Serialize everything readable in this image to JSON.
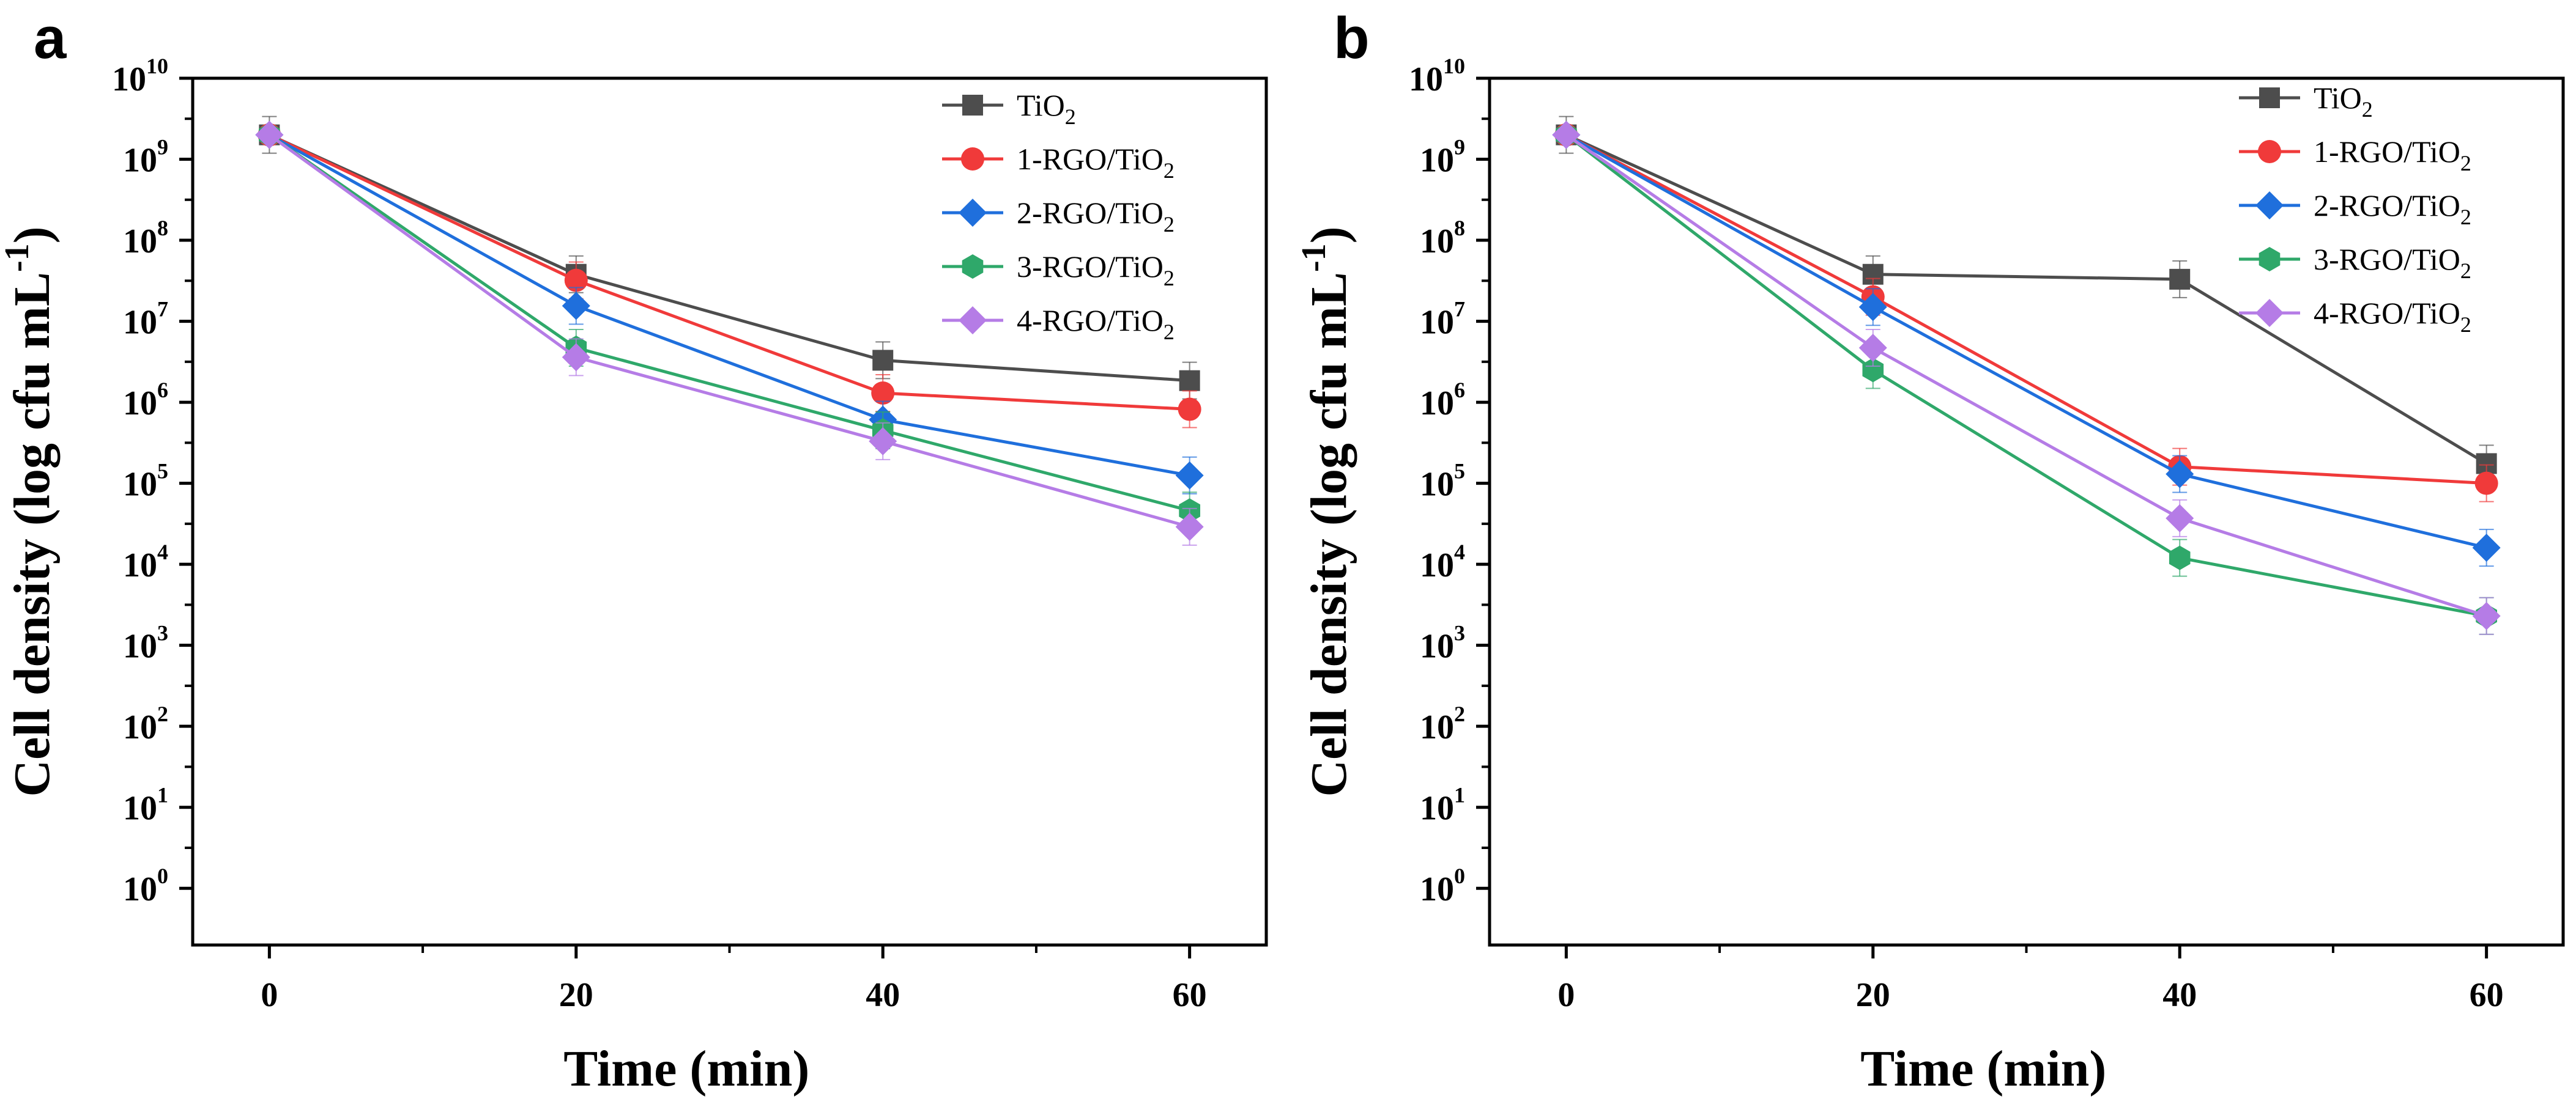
{
  "chart_data": [
    {
      "panel": "a",
      "type": "line",
      "xlabel": "Time (min)",
      "ylabel": "Cell density (log cfu mL",
      "ylabel_sup": "-1",
      "ylabel_end": ")",
      "y_scale": "log",
      "xlim": [
        -5,
        65
      ],
      "ylim_exp": [
        -0.7,
        10
      ],
      "x_ticks": [
        "0",
        "20",
        "40",
        "60"
      ],
      "y_ticks": [
        {
          "base": "10",
          "exp": "0"
        },
        {
          "base": "10",
          "exp": "1"
        },
        {
          "base": "10",
          "exp": "2"
        },
        {
          "base": "10",
          "exp": "3"
        },
        {
          "base": "10",
          "exp": "4"
        },
        {
          "base": "10",
          "exp": "5"
        },
        {
          "base": "10",
          "exp": "6"
        },
        {
          "base": "10",
          "exp": "7"
        },
        {
          "base": "10",
          "exp": "8"
        },
        {
          "base": "10",
          "exp": "9"
        },
        {
          "base": "10",
          "exp": "10"
        }
      ],
      "legend_position": "top-right",
      "x": [
        0,
        20,
        40,
        60
      ],
      "series": [
        {
          "name": "TiO",
          "sub": "2",
          "color": "#4d4d4d",
          "marker": "square",
          "values": [
            2000000000,
            38000000,
            3300000,
            1850000
          ]
        },
        {
          "name": "1-RGO/TiO",
          "sub": "2",
          "color": "#f03a3a",
          "marker": "circle",
          "values": [
            2000000000,
            32000000,
            1300000,
            820000
          ]
        },
        {
          "name": "2-RGO/TiO",
          "sub": "2",
          "color": "#1f6fdc",
          "marker": "diamond",
          "values": [
            2000000000,
            15500000,
            610000,
            125000
          ]
        },
        {
          "name": "3-RGO/TiO",
          "sub": "2",
          "color": "#2fa86a",
          "marker": "hexagon",
          "values": [
            2000000000,
            4700000,
            450000,
            46000
          ]
        },
        {
          "name": "4-RGO/TiO",
          "sub": "2",
          "color": "#b57ce6",
          "marker": "diamond",
          "values": [
            2000000000,
            3600000,
            330000,
            29000
          ]
        }
      ]
    },
    {
      "panel": "b",
      "type": "line",
      "xlabel": "Time (min)",
      "ylabel": "Cell density (log cfu mL",
      "ylabel_sup": "-1",
      "ylabel_end": ")",
      "y_scale": "log",
      "xlim": [
        -5,
        65
      ],
      "ylim_exp": [
        -0.7,
        10
      ],
      "x_ticks": [
        "0",
        "20",
        "40",
        "60"
      ],
      "y_ticks": [
        {
          "base": "10",
          "exp": "0"
        },
        {
          "base": "10",
          "exp": "1"
        },
        {
          "base": "10",
          "exp": "2"
        },
        {
          "base": "10",
          "exp": "3"
        },
        {
          "base": "10",
          "exp": "4"
        },
        {
          "base": "10",
          "exp": "5"
        },
        {
          "base": "10",
          "exp": "6"
        },
        {
          "base": "10",
          "exp": "7"
        },
        {
          "base": "10",
          "exp": "8"
        },
        {
          "base": "10",
          "exp": "9"
        },
        {
          "base": "10",
          "exp": "10"
        }
      ],
      "legend_position": "top-right",
      "x": [
        0,
        20,
        40,
        60
      ],
      "series": [
        {
          "name": "TiO",
          "sub": "2",
          "color": "#4d4d4d",
          "marker": "square",
          "values": [
            2000000000,
            38000000,
            33000000,
            175000
          ]
        },
        {
          "name": "1-RGO/TiO",
          "sub": "2",
          "color": "#f03a3a",
          "marker": "circle",
          "values": [
            2000000000,
            20000000,
            160000,
            100000
          ]
        },
        {
          "name": "2-RGO/TiO",
          "sub": "2",
          "color": "#1f6fdc",
          "marker": "diamond",
          "values": [
            2000000000,
            15000000,
            130000,
            16000
          ]
        },
        {
          "name": "3-RGO/TiO",
          "sub": "2",
          "color": "#2fa86a",
          "marker": "hexagon",
          "values": [
            2000000000,
            2500000,
            12000,
            2300
          ]
        },
        {
          "name": "4-RGO/TiO",
          "sub": "2",
          "color": "#b57ce6",
          "marker": "diamond",
          "values": [
            2000000000,
            4700000,
            37000,
            2300
          ]
        }
      ]
    }
  ]
}
